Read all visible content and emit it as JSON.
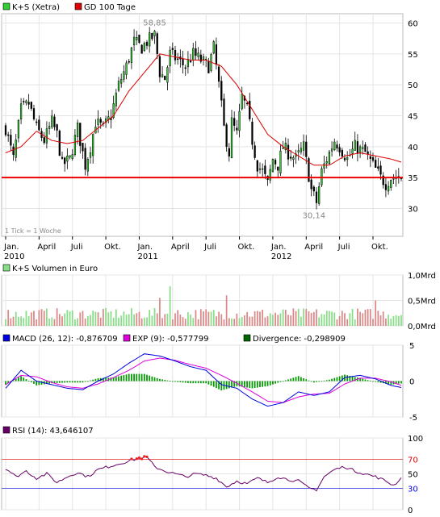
{
  "chart_data": [
    {
      "type": "candlestick",
      "legend": [
        {
          "label": "K+S (Xetra)",
          "color": "#33cc33"
        },
        {
          "label": "GD 100 Tage",
          "color": "#dd0000"
        }
      ],
      "y_ticks": [
        30,
        35,
        40,
        45,
        50,
        55,
        60
      ],
      "ylim": [
        25.5,
        61.5
      ],
      "x_ticks": [
        {
          "label": "Jan.",
          "year": "2010",
          "week": 0
        },
        {
          "label": "April",
          "week": 13
        },
        {
          "label": "Juli",
          "week": 26
        },
        {
          "label": "Okt.",
          "week": 39
        },
        {
          "label": "Jan.",
          "year": "2011",
          "week": 52
        },
        {
          "label": "April",
          "week": 65
        },
        {
          "label": "Juli",
          "week": 78
        },
        {
          "label": "Okt.",
          "week": 91
        },
        {
          "label": "Jan.",
          "year": "2012",
          "week": 104
        },
        {
          "label": "April",
          "week": 117
        },
        {
          "label": "Juli",
          "week": 130
        },
        {
          "label": "Okt.",
          "week": 143
        }
      ],
      "weeks": 155,
      "annotations": [
        {
          "text": "58,85",
          "value": 58.85,
          "week": 58
        },
        {
          "text": "30,14",
          "value": 30.14,
          "week": 120
        }
      ],
      "support_line": 35.0,
      "footnote": "1 Tick = 1 Woche",
      "close_anchors": [
        [
          0,
          43
        ],
        [
          3,
          38
        ],
        [
          6,
          46
        ],
        [
          9,
          47
        ],
        [
          12,
          43
        ],
        [
          15,
          41
        ],
        [
          18,
          44
        ],
        [
          20,
          42
        ],
        [
          22,
          37
        ],
        [
          25,
          38
        ],
        [
          28,
          43
        ],
        [
          31,
          37
        ],
        [
          33,
          40
        ],
        [
          35,
          44
        ],
        [
          38,
          43
        ],
        [
          41,
          45
        ],
        [
          44,
          50
        ],
        [
          47,
          53
        ],
        [
          50,
          57
        ],
        [
          53,
          56
        ],
        [
          55,
          57
        ],
        [
          58,
          58
        ],
        [
          60,
          52
        ],
        [
          62,
          51
        ],
        [
          64,
          55
        ],
        [
          67,
          54
        ],
        [
          70,
          53
        ],
        [
          73,
          55
        ],
        [
          76,
          54
        ],
        [
          79,
          53
        ],
        [
          81,
          56
        ],
        [
          83,
          50
        ],
        [
          85,
          43
        ],
        [
          87,
          39
        ],
        [
          88,
          44
        ],
        [
          90,
          42
        ],
        [
          92,
          48
        ],
        [
          94,
          46
        ],
        [
          96,
          41
        ],
        [
          98,
          37
        ],
        [
          100,
          36
        ],
        [
          102,
          34
        ],
        [
          104,
          38
        ],
        [
          106,
          37
        ],
        [
          108,
          40
        ],
        [
          110,
          39
        ],
        [
          113,
          38
        ],
        [
          116,
          40
        ],
        [
          119,
          33
        ],
        [
          121,
          31
        ],
        [
          123,
          36
        ],
        [
          125,
          38
        ],
        [
          128,
          41
        ],
        [
          130,
          40
        ],
        [
          133,
          38
        ],
        [
          136,
          40
        ],
        [
          140,
          39
        ],
        [
          143,
          37
        ],
        [
          146,
          35
        ],
        [
          148,
          34
        ],
        [
          150,
          35
        ],
        [
          154,
          35
        ]
      ],
      "sma_anchors": [
        [
          0,
          39
        ],
        [
          6,
          40
        ],
        [
          12,
          42.5
        ],
        [
          18,
          41
        ],
        [
          24,
          40.5
        ],
        [
          30,
          41
        ],
        [
          36,
          43
        ],
        [
          42,
          45
        ],
        [
          48,
          49
        ],
        [
          54,
          52
        ],
        [
          60,
          55
        ],
        [
          66,
          54.5
        ],
        [
          72,
          54
        ],
        [
          78,
          54
        ],
        [
          84,
          53
        ],
        [
          90,
          50
        ],
        [
          96,
          46
        ],
        [
          102,
          42
        ],
        [
          108,
          40
        ],
        [
          114,
          38.5
        ],
        [
          120,
          37
        ],
        [
          126,
          37
        ],
        [
          132,
          38.5
        ],
        [
          138,
          39
        ],
        [
          144,
          38.5
        ],
        [
          150,
          38
        ],
        [
          154,
          37.5
        ]
      ]
    },
    {
      "type": "bar",
      "title": "K+S Volumen in Euro",
      "y_ticks": [
        "0,0Mrd",
        "0,5Mrd",
        "1,0Mrd"
      ],
      "ylim": [
        0,
        1.0
      ],
      "weeks": 155,
      "amplitude": 0.25,
      "spikes": [
        [
          64,
          0.78
        ],
        [
          60,
          0.55
        ],
        [
          86,
          0.6
        ],
        [
          144,
          0.5
        ]
      ]
    },
    {
      "type": "line",
      "legend": [
        {
          "label": "MACD (26, 12):",
          "value": "-0,876709",
          "color": "#0000dd"
        },
        {
          "label": "EXP (9):",
          "value": "-0,577799",
          "color": "#dd00dd"
        },
        {
          "label": "Divergence:",
          "value": "-0,298909",
          "color": "#006600"
        }
      ],
      "y_ticks": [
        "5",
        "0",
        "-5"
      ],
      "ylim": [
        -5,
        5
      ],
      "weeks": 155,
      "macd_anchors": [
        [
          0,
          -1
        ],
        [
          6,
          1.5
        ],
        [
          12,
          0
        ],
        [
          18,
          -0.5
        ],
        [
          24,
          -1
        ],
        [
          30,
          -1.2
        ],
        [
          36,
          0
        ],
        [
          42,
          1
        ],
        [
          48,
          2.5
        ],
        [
          54,
          3.8
        ],
        [
          60,
          3.5
        ],
        [
          66,
          2.8
        ],
        [
          72,
          2
        ],
        [
          78,
          1.5
        ],
        [
          84,
          -0.5
        ],
        [
          90,
          -1
        ],
        [
          96,
          -2.5
        ],
        [
          102,
          -3.5
        ],
        [
          108,
          -3
        ],
        [
          114,
          -1.5
        ],
        [
          120,
          -2
        ],
        [
          126,
          -1.5
        ],
        [
          132,
          0.5
        ],
        [
          138,
          0.8
        ],
        [
          144,
          0.3
        ],
        [
          150,
          -0.6
        ],
        [
          154,
          -0.9
        ]
      ],
      "exp_anchors": [
        [
          0,
          -0.5
        ],
        [
          6,
          0.8
        ],
        [
          12,
          0.6
        ],
        [
          18,
          -0.2
        ],
        [
          24,
          -0.8
        ],
        [
          30,
          -1
        ],
        [
          36,
          -0.4
        ],
        [
          42,
          0.5
        ],
        [
          48,
          1.5
        ],
        [
          54,
          2.8
        ],
        [
          60,
          3.2
        ],
        [
          66,
          2.9
        ],
        [
          72,
          2.3
        ],
        [
          78,
          1.8
        ],
        [
          84,
          0.8
        ],
        [
          90,
          -0.3
        ],
        [
          96,
          -1.5
        ],
        [
          102,
          -2.8
        ],
        [
          108,
          -3
        ],
        [
          114,
          -2.2
        ],
        [
          120,
          -1.8
        ],
        [
          126,
          -1.7
        ],
        [
          132,
          -0.4
        ],
        [
          138,
          0.4
        ],
        [
          144,
          0.4
        ],
        [
          150,
          -0.1
        ],
        [
          154,
          -0.58
        ]
      ]
    },
    {
      "type": "line",
      "legend": [
        {
          "label": "RSI (14):",
          "value": "43,646107",
          "color": "#660066"
        }
      ],
      "y_ticks": [
        "100",
        "70",
        "50",
        "30",
        "0"
      ],
      "ylim": [
        0,
        100
      ],
      "ref_lines": [
        {
          "value": 70,
          "color": "#dd0000"
        },
        {
          "value": 30,
          "color": "#0000dd"
        }
      ],
      "weeks": 155,
      "rsi_anchors": [
        [
          0,
          58
        ],
        [
          4,
          46
        ],
        [
          8,
          54
        ],
        [
          12,
          44
        ],
        [
          16,
          50
        ],
        [
          20,
          38
        ],
        [
          24,
          46
        ],
        [
          28,
          52
        ],
        [
          32,
          46
        ],
        [
          36,
          56
        ],
        [
          40,
          60
        ],
        [
          44,
          64
        ],
        [
          48,
          68
        ],
        [
          52,
          72
        ],
        [
          55,
          73
        ],
        [
          58,
          60
        ],
        [
          62,
          54
        ],
        [
          66,
          50
        ],
        [
          70,
          46
        ],
        [
          74,
          50
        ],
        [
          78,
          48
        ],
        [
          82,
          44
        ],
        [
          86,
          32
        ],
        [
          90,
          40
        ],
        [
          94,
          36
        ],
        [
          98,
          44
        ],
        [
          102,
          38
        ],
        [
          106,
          46
        ],
        [
          110,
          42
        ],
        [
          114,
          40
        ],
        [
          118,
          30
        ],
        [
          121,
          28
        ],
        [
          124,
          46
        ],
        [
          128,
          56
        ],
        [
          132,
          60
        ],
        [
          136,
          54
        ],
        [
          140,
          50
        ],
        [
          144,
          46
        ],
        [
          148,
          40
        ],
        [
          151,
          34
        ],
        [
          154,
          44
        ]
      ]
    }
  ]
}
